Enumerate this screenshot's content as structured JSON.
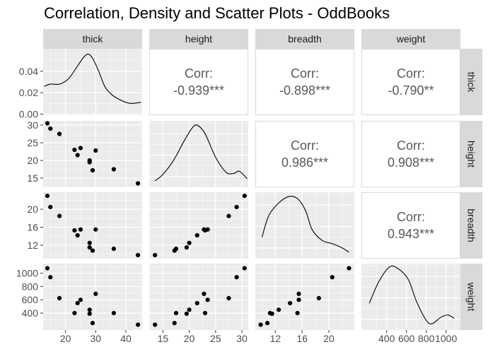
{
  "title": "Correlation, Density and Scatter Plots - OddBooks",
  "colors": {
    "panel_bg": "#ebebeb",
    "grid_major": "#ffffff",
    "strip_bg": "#d9d9d9",
    "corr_border": "#d9d9d9",
    "ink": "#000000",
    "corr_text": "#595959",
    "tick_text": "#4d4d4d"
  },
  "chart_data": {
    "type": "scatter-matrix",
    "variables": [
      "thick",
      "height",
      "breadth",
      "weight"
    ],
    "axis_ranges": {
      "thick": [
        12.6,
        45.4
      ],
      "height": [
        12.4,
        31.2
      ],
      "breadth": [
        9.0,
        23.8
      ],
      "weight": [
        145,
        1145
      ]
    },
    "ticks": {
      "thick": [
        20,
        30,
        40
      ],
      "height": [
        15,
        20,
        25,
        30
      ],
      "breadth": [
        12,
        16,
        20
      ],
      "weight": [
        400,
        600,
        800,
        1000
      ]
    },
    "density_axis": {
      "range": [
        -0.001,
        0.061
      ],
      "ticks": [
        "0.00",
        "0.02",
        "0.04"
      ]
    },
    "observations": {
      "thick": [
        14,
        15,
        18,
        23,
        24,
        25,
        28,
        28,
        29,
        30,
        36,
        44
      ],
      "height": [
        30.5,
        29.0,
        27.5,
        23.0,
        21.5,
        23.5,
        20.0,
        19.5,
        17.2,
        22.8,
        17.5,
        13.5
      ],
      "breadth": [
        23.0,
        20.5,
        18.5,
        15.3,
        14.2,
        15.5,
        12.5,
        11.5,
        10.8,
        15.5,
        11.2,
        9.8
      ],
      "weight": [
        1075,
        940,
        625,
        400,
        550,
        600,
        450,
        390,
        250,
        690,
        400,
        225
      ]
    },
    "correlations": [
      {
        "row": "thick",
        "col": "height",
        "label": "Corr:",
        "value": "-0.939***"
      },
      {
        "row": "thick",
        "col": "breadth",
        "label": "Corr:",
        "value": "-0.898***"
      },
      {
        "row": "thick",
        "col": "weight",
        "label": "Corr:",
        "value": "-0.790**"
      },
      {
        "row": "height",
        "col": "breadth",
        "label": "Corr:",
        "value": "0.986***"
      },
      {
        "row": "height",
        "col": "weight",
        "label": "Corr:",
        "value": "0.908***"
      },
      {
        "row": "breadth",
        "col": "weight",
        "label": "Corr:",
        "value": "0.943***"
      }
    ],
    "densities": {
      "thick": [
        [
          13,
          0.026
        ],
        [
          15,
          0.028
        ],
        [
          18,
          0.028
        ],
        [
          21,
          0.033
        ],
        [
          24,
          0.045
        ],
        [
          26,
          0.053
        ],
        [
          27.5,
          0.056
        ],
        [
          29,
          0.052
        ],
        [
          31,
          0.04
        ],
        [
          33,
          0.026
        ],
        [
          35,
          0.019
        ],
        [
          37,
          0.015
        ],
        [
          40,
          0.011
        ],
        [
          42,
          0.01
        ],
        [
          45,
          0.011
        ]
      ],
      "height": [
        [
          13.5,
          0.36
        ],
        [
          15,
          0.42
        ],
        [
          17,
          0.55
        ],
        [
          19,
          0.73
        ],
        [
          20.5,
          0.85
        ],
        [
          21.5,
          0.88
        ],
        [
          23,
          0.8
        ],
        [
          25,
          0.58
        ],
        [
          27,
          0.44
        ],
        [
          28.5,
          0.43
        ],
        [
          29.5,
          0.45
        ],
        [
          31,
          0.38
        ]
      ],
      "breadth": [
        [
          10,
          0.5
        ],
        [
          11,
          0.7
        ],
        [
          12.5,
          0.82
        ],
        [
          14,
          0.88
        ],
        [
          15.3,
          0.86
        ],
        [
          16.5,
          0.75
        ],
        [
          17.5,
          0.57
        ],
        [
          19,
          0.47
        ],
        [
          20.5,
          0.44
        ],
        [
          22,
          0.4
        ],
        [
          23,
          0.36
        ]
      ],
      "weight": [
        [
          225,
          0.55
        ],
        [
          320,
          0.75
        ],
        [
          430,
          0.89
        ],
        [
          520,
          0.87
        ],
        [
          620,
          0.77
        ],
        [
          700,
          0.57
        ],
        [
          800,
          0.39
        ],
        [
          860,
          0.36
        ],
        [
          950,
          0.42
        ],
        [
          1020,
          0.44
        ],
        [
          1080,
          0.41
        ]
      ]
    }
  }
}
